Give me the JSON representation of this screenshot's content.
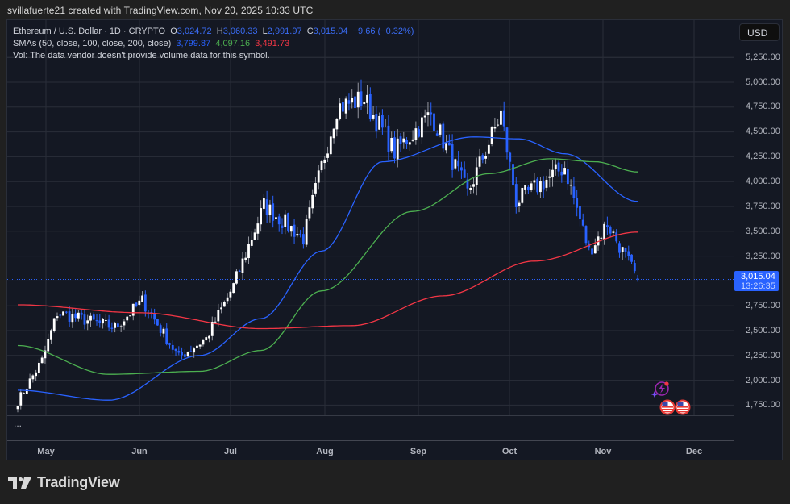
{
  "header": {
    "attribution": "svillafuerte21 created with TradingView.com, Nov 20, 2025 10:33 UTC"
  },
  "legend": {
    "symbol": "Ethereum / U.S. Dollar · 1D · CRYPTO",
    "open_label": "O",
    "open": "3,024.72",
    "high_label": "H",
    "high": "3,060.33",
    "low_label": "L",
    "low": "2,991.97",
    "close_label": "C",
    "close": "3,015.04",
    "change": "−9.66 (−0.32%)",
    "sma_label": "SMAs (50, close, 100, close, 200, close)",
    "sma50": "3,799.87",
    "sma100": "4,097.16",
    "sma200": "3,491.73",
    "vol_text": "Vol: The data vendor doesn't provide volume data for this symbol."
  },
  "price_axis": {
    "currency": "USD",
    "ticks": [
      "5,250.00",
      "5,000.00",
      "4,750.00",
      "4,500.00",
      "4,250.00",
      "4,000.00",
      "3,750.00",
      "3,500.00",
      "3,250.00",
      "3,000.00",
      "2,750.00",
      "2,500.00",
      "2,250.00",
      "2,000.00",
      "1,750.00"
    ],
    "last_price": "3,015.04",
    "countdown": "13:26:35"
  },
  "time_axis": {
    "labels": [
      "May",
      "Jun",
      "Jul",
      "Aug",
      "Sep",
      "Oct",
      "Nov",
      "Dec"
    ]
  },
  "subpane": {
    "collapsed_label": "..."
  },
  "branding": {
    "logo_text": "TradingView"
  },
  "colors": {
    "up": "#ffffff",
    "down": "#2962ff",
    "sma50": "#2962ff",
    "sma100": "#4caf50",
    "sma200": "#f23645",
    "background": "#141823",
    "grid": "#2a2e39"
  },
  "chart_data": {
    "type": "candlestick",
    "title": "Ethereum / U.S. Dollar · 1D · CRYPTO",
    "xlabel": "",
    "ylabel": "USD",
    "ylim": [
      1620,
      5380
    ],
    "grid": true,
    "legend_position": "top-left",
    "x_tick_labels": [
      "May",
      "Jun",
      "Jul",
      "Aug",
      "Sep",
      "Oct",
      "Nov",
      "Dec"
    ],
    "y_tick_labels": [
      1750,
      2000,
      2250,
      2500,
      2750,
      3000,
      3250,
      3500,
      3750,
      4000,
      4250,
      4500,
      4750,
      5000,
      5250
    ],
    "last": {
      "open": 3024.72,
      "high": 3060.33,
      "low": 2991.97,
      "close": 3015.04,
      "change": -9.66,
      "change_pct": -0.32
    },
    "sma_last": {
      "sma50": 3799.87,
      "sma100": 4097.16,
      "sma200": 3491.73
    },
    "closes_keypoints": [
      {
        "date": "Apr 30",
        "close": 1790
      },
      {
        "date": "May 8",
        "close": 2200
      },
      {
        "date": "May 13",
        "close": 2680
      },
      {
        "date": "Jun 1",
        "close": 2530
      },
      {
        "date": "Jun 10",
        "close": 2800
      },
      {
        "date": "Jun 22",
        "close": 2230
      },
      {
        "date": "Jul 1",
        "close": 2420
      },
      {
        "date": "Jul 10",
        "close": 2950
      },
      {
        "date": "Jul 20",
        "close": 3760
      },
      {
        "date": "Aug 2",
        "close": 3430
      },
      {
        "date": "Aug 13",
        "close": 4750
      },
      {
        "date": "Aug 22",
        "close": 4830
      },
      {
        "date": "Sep 1",
        "close": 4300
      },
      {
        "date": "Sep 13",
        "close": 4680
      },
      {
        "date": "Sep 25",
        "close": 3880
      },
      {
        "date": "Oct 6",
        "close": 4680
      },
      {
        "date": "Oct 11",
        "close": 3800
      },
      {
        "date": "Oct 27",
        "close": 4150
      },
      {
        "date": "Nov 4",
        "close": 3300
      },
      {
        "date": "Nov 10",
        "close": 3580
      },
      {
        "date": "Nov 20",
        "close": 3015
      }
    ],
    "series": [
      {
        "name": "SMA 50",
        "color": "#2962ff",
        "values_keypoints": [
          [
            0,
            1900
          ],
          [
            30,
            1800
          ],
          [
            60,
            2250
          ],
          [
            80,
            2620
          ],
          [
            100,
            3300
          ],
          [
            120,
            4200
          ],
          [
            150,
            4450
          ],
          [
            165,
            4430
          ],
          [
            180,
            4280
          ],
          [
            204,
            3800
          ]
        ]
      },
      {
        "name": "SMA 100",
        "color": "#4caf50",
        "values_keypoints": [
          [
            0,
            2350
          ],
          [
            30,
            2060
          ],
          [
            60,
            2090
          ],
          [
            80,
            2300
          ],
          [
            100,
            2900
          ],
          [
            130,
            3700
          ],
          [
            155,
            4080
          ],
          [
            175,
            4230
          ],
          [
            190,
            4200
          ],
          [
            204,
            4097
          ]
        ]
      },
      {
        "name": "SMA 200",
        "color": "#f23645",
        "values_keypoints": [
          [
            0,
            2760
          ],
          [
            40,
            2680
          ],
          [
            80,
            2520
          ],
          [
            110,
            2550
          ],
          [
            140,
            2850
          ],
          [
            170,
            3200
          ],
          [
            204,
            3492
          ]
        ]
      }
    ]
  }
}
